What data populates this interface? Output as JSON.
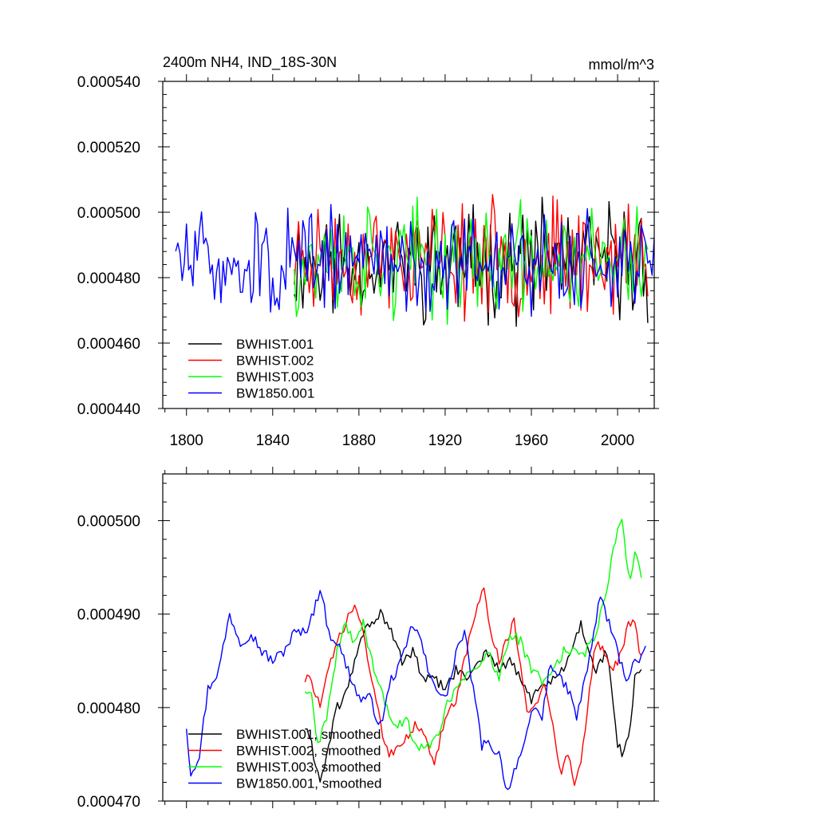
{
  "colors": {
    "BWHIST.001": "#000000",
    "BWHIST.002": "#ff0000",
    "BWHIST.003": "#00ff00",
    "BW1850.001": "#0000ff"
  },
  "chart_data": [
    {
      "type": "line",
      "title": "2400m NH4, IND_18S-30N",
      "units": "mmol/m^3",
      "xlabel": "",
      "ylabel": "",
      "xlim": [
        1789,
        2017
      ],
      "ylim": [
        0.00044,
        0.00054
      ],
      "x_ticks": [
        1800,
        1840,
        1880,
        1920,
        1960,
        2000
      ],
      "x_tick_labels": [
        "1800",
        "1840",
        "1880",
        "1920",
        "1960",
        "2000"
      ],
      "y_ticks": [
        0.00044,
        0.00046,
        0.00048,
        0.0005,
        0.00052,
        0.00054
      ],
      "y_tick_labels": [
        "0.000440",
        "0.000460",
        "0.000480",
        "0.000500",
        "0.000520",
        "0.000540"
      ],
      "legend": "bottom-left",
      "series": [
        {
          "name": "BWHIST.001",
          "label": "BWHIST.001",
          "x_start": 1850,
          "x_end": 2014,
          "mean": 0.000485,
          "amplitude": 1.1e-05,
          "seed": 11,
          "knots": [],
          "color_key": "BWHIST.001"
        },
        {
          "name": "BWHIST.002",
          "label": "BWHIST.002",
          "x_start": 1850,
          "x_end": 2014,
          "mean": 0.000486,
          "amplitude": 1.1e-05,
          "seed": 23,
          "knots": [],
          "color_key": "BWHIST.002"
        },
        {
          "name": "BWHIST.003",
          "label": "BWHIST.003",
          "x_start": 1850,
          "x_end": 2014,
          "mean": 0.000485,
          "amplitude": 1.1e-05,
          "seed": 37,
          "knots": [],
          "color_key": "BWHIST.003"
        },
        {
          "name": "BW1850.001",
          "label": "BW1850.001",
          "x_start": 1795,
          "x_end": 2017,
          "mean": 0.000485,
          "amplitude": 1e-05,
          "seed": 51,
          "knots": [],
          "color_key": "BW1850.001"
        }
      ]
    },
    {
      "type": "line",
      "title": "",
      "xlabel": "",
      "ylabel": "",
      "xlim": [
        1789,
        2017
      ],
      "ylim": [
        0.00047,
        0.000505
      ],
      "x_ticks": [
        1800,
        1840,
        1880,
        1920,
        1960,
        2000
      ],
      "x_tick_labels": [],
      "y_ticks": [
        0.00047,
        0.00048,
        0.00049,
        0.0005
      ],
      "y_tick_labels": [
        "0.000470",
        "0.000480",
        "0.000490",
        "0.000500"
      ],
      "legend": "bottom-left",
      "series": [
        {
          "name": "BWHIST.001, smoothed",
          "label": "BWHIST.001, smoothed",
          "x_start": 1855,
          "x_end": 2011,
          "amplitude": 6e-07,
          "seed": 61,
          "color_key": "BWHIST.001",
          "knots": [
            [
              1855,
              0.000478
            ],
            [
              1858,
              0.000476
            ],
            [
              1862,
              0.000472
            ],
            [
              1866,
              0.000476
            ],
            [
              1870,
              0.00048
            ],
            [
              1875,
              0.000482
            ],
            [
              1880,
              0.000487
            ],
            [
              1885,
              0.000489
            ],
            [
              1890,
              0.00049
            ],
            [
              1895,
              0.000488
            ],
            [
              1900,
              0.000485
            ],
            [
              1905,
              0.000486
            ],
            [
              1910,
              0.000483
            ],
            [
              1915,
              0.000483
            ],
            [
              1920,
              0.000482
            ],
            [
              1925,
              0.000484
            ],
            [
              1930,
              0.000483
            ],
            [
              1935,
              0.000485
            ],
            [
              1940,
              0.000486
            ],
            [
              1945,
              0.000484
            ],
            [
              1950,
              0.000485
            ],
            [
              1955,
              0.000483
            ],
            [
              1960,
              0.000481
            ],
            [
              1965,
              0.000482
            ],
            [
              1970,
              0.000483
            ],
            [
              1975,
              0.000484
            ],
            [
              1980,
              0.000487
            ],
            [
              1983,
              0.000489
            ],
            [
              1987,
              0.000486
            ],
            [
              1990,
              0.000484
            ],
            [
              1995,
              0.000486
            ],
            [
              1998,
              0.00048
            ],
            [
              2000,
              0.000476
            ],
            [
              2003,
              0.000475
            ],
            [
              2006,
              0.000478
            ],
            [
              2008,
              0.000483
            ],
            [
              2011,
              0.000484
            ]
          ]
        },
        {
          "name": "BWHIST.002, smoothed",
          "label": "BWHIST.002, smoothed",
          "x_start": 1855,
          "x_end": 2011,
          "amplitude": 6e-07,
          "seed": 73,
          "color_key": "BWHIST.002",
          "knots": [
            [
              1855,
              0.000483
            ],
            [
              1858,
              0.000483
            ],
            [
              1862,
              0.00048
            ],
            [
              1866,
              0.000484
            ],
            [
              1870,
              0.000487
            ],
            [
              1874,
              0.000489
            ],
            [
              1878,
              0.000491
            ],
            [
              1882,
              0.000488
            ],
            [
              1886,
              0.000483
            ],
            [
              1890,
              0.000478
            ],
            [
              1894,
              0.000475
            ],
            [
              1898,
              0.000476
            ],
            [
              1902,
              0.000477
            ],
            [
              1906,
              0.000478
            ],
            [
              1910,
              0.000477
            ],
            [
              1915,
              0.000474
            ],
            [
              1920,
              0.000479
            ],
            [
              1925,
              0.000481
            ],
            [
              1930,
              0.000486
            ],
            [
              1935,
              0.000491
            ],
            [
              1938,
              0.000493
            ],
            [
              1941,
              0.000488
            ],
            [
              1945,
              0.000485
            ],
            [
              1948,
              0.000487
            ],
            [
              1952,
              0.000489
            ],
            [
              1955,
              0.000484
            ],
            [
              1958,
              0.00048
            ],
            [
              1962,
              0.00048
            ],
            [
              1966,
              0.000483
            ],
            [
              1970,
              0.000478
            ],
            [
              1974,
              0.000473
            ],
            [
              1977,
              0.000475
            ],
            [
              1980,
              0.000472
            ],
            [
              1983,
              0.000474
            ],
            [
              1987,
              0.000482
            ],
            [
              1990,
              0.000487
            ],
            [
              1994,
              0.000486
            ],
            [
              1998,
              0.000484
            ],
            [
              2002,
              0.000486
            ],
            [
              2005,
              0.000489
            ],
            [
              2008,
              0.000489
            ],
            [
              2011,
              0.000485
            ]
          ]
        },
        {
          "name": "BWHIST.003, smoothed",
          "label": "BWHIST.003, smoothed",
          "x_start": 1855,
          "x_end": 2011,
          "amplitude": 6e-07,
          "seed": 89,
          "color_key": "BWHIST.003",
          "knots": [
            [
              1855,
              0.000482
            ],
            [
              1858,
              0.000481
            ],
            [
              1861,
              0.000476
            ],
            [
              1865,
              0.000479
            ],
            [
              1870,
              0.000486
            ],
            [
              1874,
              0.000489
            ],
            [
              1878,
              0.000487
            ],
            [
              1882,
              0.000489
            ],
            [
              1886,
              0.000485
            ],
            [
              1890,
              0.000482
            ],
            [
              1894,
              0.000479
            ],
            [
              1898,
              0.000478
            ],
            [
              1902,
              0.000479
            ],
            [
              1906,
              0.000476
            ],
            [
              1910,
              0.000476
            ],
            [
              1914,
              0.000476
            ],
            [
              1918,
              0.000478
            ],
            [
              1922,
              0.000481
            ],
            [
              1926,
              0.000482
            ],
            [
              1930,
              0.000484
            ],
            [
              1935,
              0.000484
            ],
            [
              1940,
              0.000486
            ],
            [
              1945,
              0.000483
            ],
            [
              1950,
              0.000488
            ],
            [
              1955,
              0.000487
            ],
            [
              1960,
              0.000484
            ],
            [
              1965,
              0.000483
            ],
            [
              1970,
              0.000484
            ],
            [
              1975,
              0.000486
            ],
            [
              1980,
              0.000486
            ],
            [
              1985,
              0.000486
            ],
            [
              1990,
              0.000488
            ],
            [
              1993,
              0.000491
            ],
            [
              1996,
              0.000494
            ],
            [
              1999,
              0.000498
            ],
            [
              2002,
              0.0005
            ],
            [
              2004,
              0.000496
            ],
            [
              2006,
              0.000494
            ],
            [
              2008,
              0.000497
            ],
            [
              2011,
              0.000494
            ]
          ]
        },
        {
          "name": "BW1850.001, smoothed",
          "label": "BW1850.001, smoothed",
          "x_start": 1800,
          "x_end": 2013,
          "amplitude": 6e-07,
          "seed": 97,
          "color_key": "BW1850.001",
          "knots": [
            [
              1800,
              0.000478
            ],
            [
              1802,
              0.000473
            ],
            [
              1806,
              0.000475
            ],
            [
              1810,
              0.000482
            ],
            [
              1815,
              0.000484
            ],
            [
              1820,
              0.00049
            ],
            [
              1825,
              0.000487
            ],
            [
              1830,
              0.000488
            ],
            [
              1835,
              0.000486
            ],
            [
              1840,
              0.000485
            ],
            [
              1845,
              0.000486
            ],
            [
              1850,
              0.000488
            ],
            [
              1855,
              0.000488
            ],
            [
              1860,
              0.000491
            ],
            [
              1862,
              0.000493
            ],
            [
              1866,
              0.000488
            ],
            [
              1870,
              0.000487
            ],
            [
              1875,
              0.000484
            ],
            [
              1880,
              0.000481
            ],
            [
              1885,
              0.000481
            ],
            [
              1890,
              0.000478
            ],
            [
              1895,
              0.000483
            ],
            [
              1900,
              0.000485
            ],
            [
              1905,
              0.000489
            ],
            [
              1909,
              0.000487
            ],
            [
              1913,
              0.000483
            ],
            [
              1917,
              0.000482
            ],
            [
              1921,
              0.000481
            ],
            [
              1925,
              0.000486
            ],
            [
              1929,
              0.000488
            ],
            [
              1933,
              0.000482
            ],
            [
              1937,
              0.000476
            ],
            [
              1941,
              0.000476
            ],
            [
              1945,
              0.000475
            ],
            [
              1949,
              0.000471
            ],
            [
              1953,
              0.000474
            ],
            [
              1957,
              0.000476
            ],
            [
              1961,
              0.00048
            ],
            [
              1965,
              0.000479
            ],
            [
              1969,
              0.000485
            ],
            [
              1973,
              0.000483
            ],
            [
              1977,
              0.000482
            ],
            [
              1981,
              0.000479
            ],
            [
              1985,
              0.000483
            ],
            [
              1989,
              0.000488
            ],
            [
              1992,
              0.000492
            ],
            [
              1996,
              0.000489
            ],
            [
              2000,
              0.000486
            ],
            [
              2004,
              0.000483
            ],
            [
              2008,
              0.000485
            ],
            [
              2011,
              0.000485
            ],
            [
              2013,
              0.000486
            ]
          ]
        }
      ]
    }
  ]
}
